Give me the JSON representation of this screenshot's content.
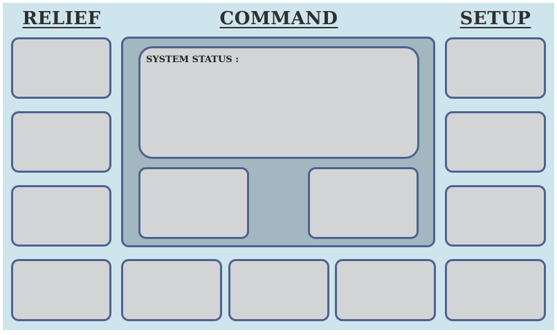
{
  "headers": {
    "relief": "RELIEF",
    "command": "COMMAND",
    "setup": "SETUP"
  },
  "status_panel": {
    "label": "SYSTEM STATUS :"
  },
  "colors": {
    "background": "#cfe5ee",
    "button_fill": "#d3d4d6",
    "button_border": "#4f6290",
    "command_group_fill": "#a2b7bf"
  }
}
